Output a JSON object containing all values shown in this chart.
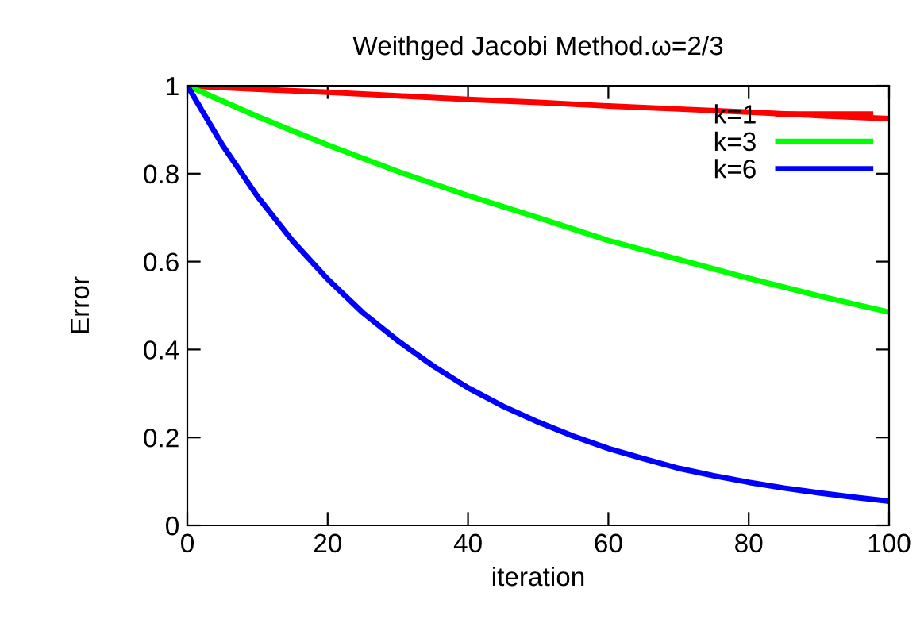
{
  "chart_data": {
    "type": "line",
    "title": "Weithged Jacobi Method.ω=2/3",
    "xlabel": "iteration",
    "ylabel": "Error",
    "xlim": [
      0,
      100
    ],
    "ylim": [
      0,
      1
    ],
    "xticks": [
      0,
      20,
      40,
      60,
      80,
      100
    ],
    "yticks": [
      0,
      0.2,
      0.4,
      0.6,
      0.8,
      1
    ],
    "grid": false,
    "legend": "top right",
    "marker": "none",
    "line_style": "solid",
    "series": [
      {
        "name": "k=1",
        "color": "#ff0000",
        "x": [
          0,
          10,
          20,
          30,
          40,
          50,
          60,
          70,
          80,
          90,
          100
        ],
        "values": [
          1,
          0.992,
          0.985,
          0.977,
          0.969,
          0.962,
          0.954,
          0.947,
          0.94,
          0.932,
          0.925
        ]
      },
      {
        "name": "k=3",
        "color": "#00ff00",
        "x": [
          0,
          10,
          20,
          30,
          40,
          50,
          60,
          70,
          80,
          90,
          100
        ],
        "values": [
          1,
          0.93,
          0.865,
          0.805,
          0.75,
          0.7,
          0.648,
          0.605,
          0.562,
          0.522,
          0.485
        ]
      },
      {
        "name": "k=6",
        "color": "#0000ff",
        "x": [
          0,
          5,
          10,
          15,
          20,
          25,
          30,
          35,
          40,
          45,
          50,
          55,
          60,
          65,
          70,
          75,
          80,
          85,
          90,
          95,
          100
        ],
        "values": [
          1,
          0.865,
          0.748,
          0.647,
          0.56,
          0.484,
          0.42,
          0.363,
          0.313,
          0.271,
          0.235,
          0.203,
          0.175,
          0.152,
          0.13,
          0.113,
          0.098,
          0.085,
          0.074,
          0.064,
          0.055
        ]
      }
    ]
  }
}
